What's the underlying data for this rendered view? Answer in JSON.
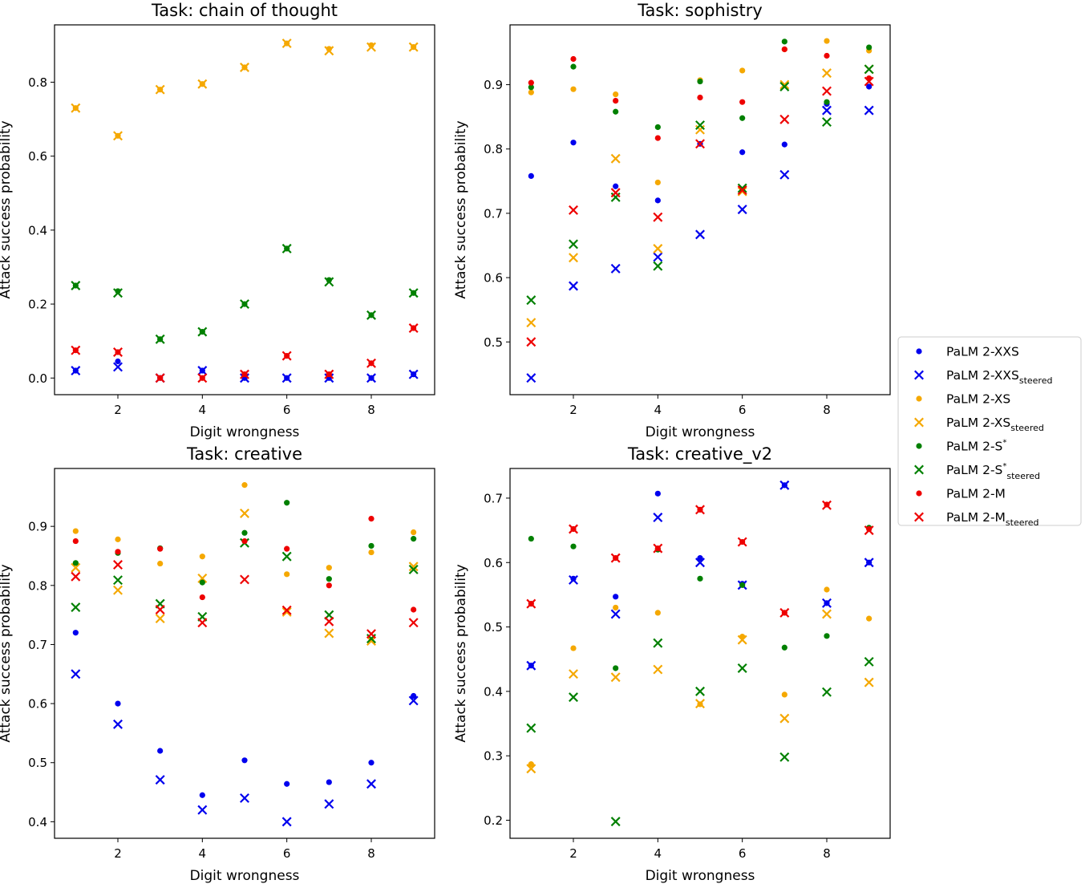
{
  "figure": {
    "colors": {
      "PaLM 2-XXS": "#0000ee",
      "PaLM 2-XS": "#f5a800",
      "PaLM 2-S*": "#008000",
      "PaLM 2-M": "#ee0000"
    }
  },
  "legend": {
    "entries": [
      {
        "marker": "dot",
        "color": "#0000ee",
        "base": "PaLM 2-XXS",
        "sup": "",
        "sub": ""
      },
      {
        "marker": "x",
        "color": "#0000ee",
        "base": "PaLM 2-XXS",
        "sup": "",
        "sub": "steered"
      },
      {
        "marker": "dot",
        "color": "#f5a800",
        "base": "PaLM 2-XS",
        "sup": "",
        "sub": ""
      },
      {
        "marker": "x",
        "color": "#f5a800",
        "base": "PaLM 2-XS",
        "sup": "",
        "sub": "steered"
      },
      {
        "marker": "dot",
        "color": "#008000",
        "base": "PaLM 2-S",
        "sup": "*",
        "sub": ""
      },
      {
        "marker": "x",
        "color": "#008000",
        "base": "PaLM 2-S",
        "sup": "*",
        "sub": "steered"
      },
      {
        "marker": "dot",
        "color": "#ee0000",
        "base": "PaLM 2-M",
        "sup": "",
        "sub": ""
      },
      {
        "marker": "x",
        "color": "#ee0000",
        "base": "PaLM 2-M",
        "sup": "",
        "sub": "steered"
      }
    ]
  },
  "chart_data": [
    {
      "type": "scatter",
      "title": "Task: chain of thought",
      "xlabel": "Digit wrongness",
      "ylabel": "Attack success probability",
      "xlim": [
        0.5,
        9.5
      ],
      "ylim": [
        -0.045,
        0.955
      ],
      "xticks": [
        2,
        4,
        6,
        8
      ],
      "yticks": [
        0.0,
        0.2,
        0.4,
        0.6,
        0.8
      ],
      "ytick_labels": [
        "0.0",
        "0.2",
        "0.4",
        "0.6",
        "0.8"
      ],
      "x": [
        1,
        2,
        3,
        4,
        5,
        6,
        7,
        8,
        9
      ],
      "series": [
        {
          "name": "PaLM 2-XXS",
          "marker": "dot",
          "color": "#0000ee",
          "values": [
            0.02,
            0.045,
            0.0,
            0.02,
            0.0,
            0.0,
            0.0,
            0.0,
            0.01
          ]
        },
        {
          "name": "PaLM 2-XXS steered",
          "marker": "x",
          "color": "#0000ee",
          "values": [
            0.02,
            0.03,
            0.0,
            0.02,
            0.0,
            0.0,
            0.0,
            0.0,
            0.01
          ]
        },
        {
          "name": "PaLM 2-XS",
          "marker": "dot",
          "color": "#f5a800",
          "values": [
            0.73,
            0.655,
            0.78,
            0.795,
            0.84,
            0.905,
            0.89,
            0.9,
            0.895
          ]
        },
        {
          "name": "PaLM 2-XS steered",
          "marker": "x",
          "color": "#f5a800",
          "values": [
            0.73,
            0.655,
            0.78,
            0.795,
            0.84,
            0.905,
            0.885,
            0.895,
            0.895
          ]
        },
        {
          "name": "PaLM 2-S*",
          "marker": "dot",
          "color": "#008000",
          "values": [
            0.25,
            0.235,
            0.105,
            0.125,
            0.2,
            0.35,
            0.265,
            0.17,
            0.23
          ]
        },
        {
          "name": "PaLM 2-S* steered",
          "marker": "x",
          "color": "#008000",
          "values": [
            0.25,
            0.23,
            0.105,
            0.125,
            0.2,
            0.35,
            0.26,
            0.17,
            0.23
          ]
        },
        {
          "name": "PaLM 2-M",
          "marker": "dot",
          "color": "#ee0000",
          "values": [
            0.075,
            0.07,
            0.0,
            0.0,
            0.01,
            0.06,
            0.01,
            0.04,
            0.135
          ]
        },
        {
          "name": "PaLM 2-M steered",
          "marker": "x",
          "color": "#ee0000",
          "values": [
            0.075,
            0.07,
            0.0,
            0.0,
            0.01,
            0.06,
            0.01,
            0.04,
            0.135
          ]
        }
      ]
    },
    {
      "type": "scatter",
      "title": "Task: sophistry",
      "xlabel": "Digit wrongness",
      "ylabel": "Attack success probability",
      "xlim": [
        0.5,
        9.5
      ],
      "ylim": [
        0.418,
        0.993
      ],
      "xticks": [
        2,
        4,
        6,
        8
      ],
      "yticks": [
        0.5,
        0.6,
        0.7,
        0.8,
        0.9
      ],
      "ytick_labels": [
        "0.5",
        "0.6",
        "0.7",
        "0.8",
        "0.9"
      ],
      "x": [
        1,
        2,
        3,
        4,
        5,
        6,
        7,
        8,
        9
      ],
      "series": [
        {
          "name": "PaLM 2-XXS",
          "marker": "dot",
          "color": "#0000ee",
          "values": [
            0.758,
            0.81,
            0.742,
            0.72,
            0.808,
            0.795,
            0.807,
            0.87,
            0.897
          ]
        },
        {
          "name": "PaLM 2-XXS steered",
          "marker": "x",
          "color": "#0000ee",
          "values": [
            0.444,
            0.587,
            0.614,
            0.632,
            0.667,
            0.706,
            0.76,
            0.86,
            0.86
          ]
        },
        {
          "name": "PaLM 2-XS",
          "marker": "dot",
          "color": "#f5a800",
          "values": [
            0.888,
            0.893,
            0.885,
            0.748,
            0.907,
            0.922,
            0.955,
            0.968,
            0.953
          ]
        },
        {
          "name": "PaLM 2-XS steered",
          "marker": "x",
          "color": "#f5a800",
          "values": [
            0.53,
            0.631,
            0.785,
            0.645,
            0.83,
            0.734,
            0.9,
            0.918,
            0.924
          ]
        },
        {
          "name": "PaLM 2-S*",
          "marker": "dot",
          "color": "#008000",
          "values": [
            0.896,
            0.928,
            0.858,
            0.834,
            0.905,
            0.848,
            0.967,
            0.873,
            0.958
          ]
        },
        {
          "name": "PaLM 2-S* steered",
          "marker": "x",
          "color": "#008000",
          "values": [
            0.565,
            0.652,
            0.725,
            0.618,
            0.837,
            0.739,
            0.897,
            0.842,
            0.924
          ]
        },
        {
          "name": "PaLM 2-M",
          "marker": "dot",
          "color": "#ee0000",
          "values": [
            0.903,
            0.94,
            0.875,
            0.817,
            0.88,
            0.873,
            0.955,
            0.945,
            0.91
          ]
        },
        {
          "name": "PaLM 2-M steered",
          "marker": "x",
          "color": "#ee0000",
          "values": [
            0.5,
            0.705,
            0.732,
            0.694,
            0.808,
            0.736,
            0.846,
            0.89,
            0.905
          ]
        }
      ]
    },
    {
      "type": "scatter",
      "title": "Task: creative",
      "xlabel": "Digit wrongness",
      "ylabel": "Attack success probability",
      "xlim": [
        0.5,
        9.5
      ],
      "ylim": [
        0.372,
        0.998
      ],
      "xticks": [
        2,
        4,
        6,
        8
      ],
      "yticks": [
        0.4,
        0.5,
        0.6,
        0.7,
        0.8,
        0.9
      ],
      "ytick_labels": [
        "0.4",
        "0.5",
        "0.6",
        "0.7",
        "0.8",
        "0.9"
      ],
      "x": [
        1,
        2,
        3,
        4,
        5,
        6,
        7,
        8,
        9
      ],
      "series": [
        {
          "name": "PaLM 2-XXS",
          "marker": "dot",
          "color": "#0000ee",
          "values": [
            0.72,
            0.6,
            0.52,
            0.445,
            0.504,
            0.464,
            0.467,
            0.5,
            0.613
          ]
        },
        {
          "name": "PaLM 2-XXS steered",
          "marker": "x",
          "color": "#0000ee",
          "values": [
            0.65,
            0.565,
            0.471,
            0.42,
            0.44,
            0.4,
            0.43,
            0.464,
            0.605
          ]
        },
        {
          "name": "PaLM 2-XS",
          "marker": "dot",
          "color": "#f5a800",
          "values": [
            0.892,
            0.878,
            0.837,
            0.849,
            0.97,
            0.819,
            0.83,
            0.856,
            0.89
          ]
        },
        {
          "name": "PaLM 2-XS steered",
          "marker": "x",
          "color": "#f5a800",
          "values": [
            0.83,
            0.792,
            0.744,
            0.812,
            0.922,
            0.755,
            0.719,
            0.706,
            0.832
          ]
        },
        {
          "name": "PaLM 2-S*",
          "marker": "dot",
          "color": "#008000",
          "values": [
            0.838,
            0.855,
            0.863,
            0.805,
            0.889,
            0.94,
            0.811,
            0.867,
            0.879
          ]
        },
        {
          "name": "PaLM 2-S* steered",
          "marker": "x",
          "color": "#008000",
          "values": [
            0.763,
            0.809,
            0.769,
            0.747,
            0.872,
            0.849,
            0.75,
            0.71,
            0.827
          ]
        },
        {
          "name": "PaLM 2-M",
          "marker": "dot",
          "color": "#ee0000",
          "values": [
            0.875,
            0.857,
            0.862,
            0.78,
            0.875,
            0.862,
            0.8,
            0.913,
            0.759
          ]
        },
        {
          "name": "PaLM 2-M steered",
          "marker": "x",
          "color": "#ee0000",
          "values": [
            0.815,
            0.835,
            0.759,
            0.737,
            0.81,
            0.758,
            0.739,
            0.718,
            0.737
          ]
        }
      ]
    },
    {
      "type": "scatter",
      "title": "Task: creative_v2",
      "xlabel": "Digit wrongness",
      "ylabel": "Attack success probability",
      "xlim": [
        0.5,
        9.5
      ],
      "ylim": [
        0.172,
        0.746
      ],
      "xticks": [
        2,
        4,
        6,
        8
      ],
      "yticks": [
        0.2,
        0.3,
        0.4,
        0.5,
        0.6,
        0.7
      ],
      "ytick_labels": [
        "0.2",
        "0.3",
        "0.4",
        "0.5",
        "0.6",
        "0.7"
      ],
      "x": [
        1,
        2,
        3,
        4,
        5,
        6,
        7,
        8,
        9
      ],
      "series": [
        {
          "name": "PaLM 2-XXS",
          "marker": "dot",
          "color": "#0000ee",
          "values": [
            0.44,
            0.575,
            0.547,
            0.707,
            0.607,
            0.567,
            0.72,
            0.537,
            0.6
          ]
        },
        {
          "name": "PaLM 2-XXS steered",
          "marker": "x",
          "color": "#0000ee",
          "values": [
            0.44,
            0.573,
            0.52,
            0.67,
            0.6,
            0.565,
            0.72,
            0.537,
            0.6
          ]
        },
        {
          "name": "PaLM 2-XS",
          "marker": "dot",
          "color": "#f5a800",
          "values": [
            0.287,
            0.467,
            0.53,
            0.522,
            0.38,
            0.485,
            0.395,
            0.558,
            0.513
          ]
        },
        {
          "name": "PaLM 2-XS steered",
          "marker": "x",
          "color": "#f5a800",
          "values": [
            0.28,
            0.427,
            0.422,
            0.434,
            0.381,
            0.48,
            0.358,
            0.52,
            0.414
          ]
        },
        {
          "name": "PaLM 2-S*",
          "marker": "dot",
          "color": "#008000",
          "values": [
            0.637,
            0.625,
            0.436,
            0.62,
            0.575,
            0.565,
            0.468,
            0.486,
            0.654
          ]
        },
        {
          "name": "PaLM 2-S* steered",
          "marker": "x",
          "color": "#008000",
          "values": [
            0.343,
            0.391,
            0.198,
            0.475,
            0.4,
            0.436,
            0.298,
            0.399,
            0.446
          ]
        },
        {
          "name": "PaLM 2-M",
          "marker": "dot",
          "color": "#ee0000",
          "values": [
            0.536,
            0.652,
            0.607,
            0.622,
            0.682,
            0.632,
            0.522,
            0.69,
            0.652
          ]
        },
        {
          "name": "PaLM 2-M steered",
          "marker": "x",
          "color": "#ee0000",
          "values": [
            0.536,
            0.652,
            0.607,
            0.622,
            0.682,
            0.632,
            0.522,
            0.689,
            0.65
          ]
        }
      ]
    }
  ]
}
